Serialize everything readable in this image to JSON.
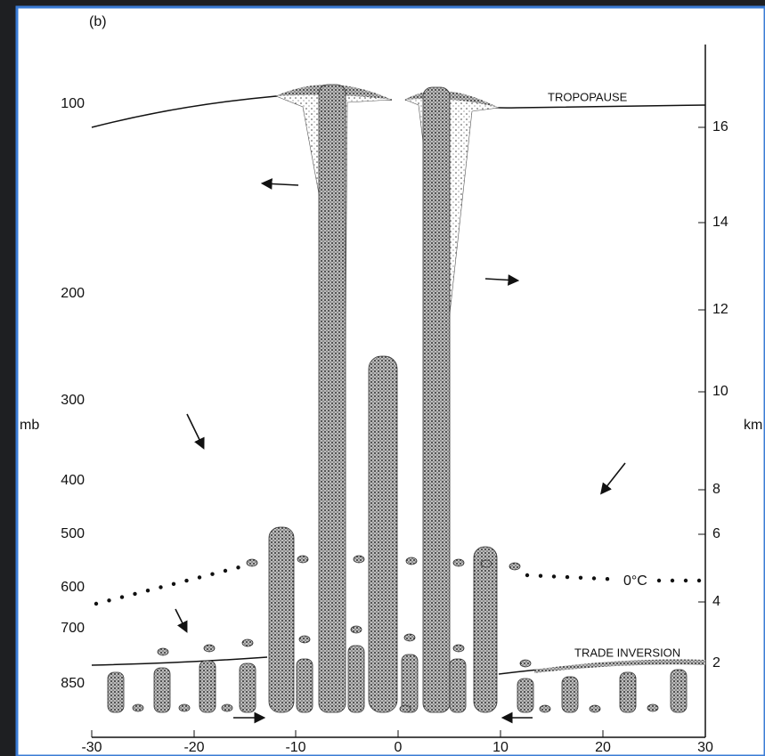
{
  "panel_label": "(b)",
  "left_axis": {
    "title": "mb",
    "labels": [
      "100",
      "200",
      "300",
      "400",
      "500",
      "600",
      "700",
      "850"
    ]
  },
  "right_axis": {
    "title": "km",
    "labels": [
      "16",
      "14",
      "12",
      "10",
      "8",
      "6",
      "4",
      "2"
    ]
  },
  "x_axis": {
    "labels": [
      "-30",
      "-20",
      "-10",
      "0",
      "10",
      "20",
      "30"
    ]
  },
  "annotations": {
    "tropopause": "TROPOPAUSE",
    "trade_inversion": "TRADE INVERSION",
    "freezing_level": "0°C"
  }
}
